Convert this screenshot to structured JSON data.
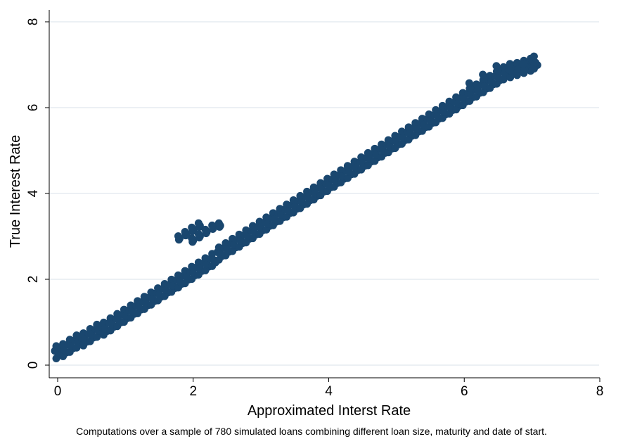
{
  "chart_data": {
    "type": "scatter",
    "xlabel": "Approximated Interst Rate",
    "ylabel": "True Interest Rate",
    "note": "Computations over a sample of 780 simulated loans combining different loan size, maturity and date of start.",
    "xlim": [
      0,
      8
    ],
    "ylim": [
      0,
      8
    ],
    "x_ticks": [
      0,
      2,
      4,
      6,
      8
    ],
    "y_ticks": [
      0,
      2,
      4,
      6,
      8
    ],
    "x_tick_labels": [
      "0",
      "2",
      "4",
      "6",
      "8"
    ],
    "y_tick_labels": [
      "0",
      "2",
      "4",
      "6",
      "8"
    ],
    "grid": "horizontal",
    "marker_color": "#1a476f",
    "grid_color": "#e5ecf0",
    "series": [
      {
        "main_band": [
          [
            0.0,
            0.3
          ],
          [
            0.1,
            0.35
          ],
          [
            0.2,
            0.45
          ],
          [
            0.3,
            0.55
          ],
          [
            0.4,
            0.6
          ],
          [
            0.5,
            0.7
          ],
          [
            0.6,
            0.8
          ],
          [
            0.7,
            0.85
          ],
          [
            0.8,
            0.95
          ],
          [
            0.9,
            1.05
          ],
          [
            1.0,
            1.15
          ],
          [
            1.1,
            1.25
          ],
          [
            1.2,
            1.35
          ],
          [
            1.3,
            1.45
          ],
          [
            1.4,
            1.55
          ],
          [
            1.5,
            1.65
          ],
          [
            1.6,
            1.75
          ],
          [
            1.7,
            1.85
          ],
          [
            1.8,
            1.95
          ],
          [
            1.9,
            2.05
          ],
          [
            2.0,
            2.15
          ],
          [
            2.1,
            2.25
          ],
          [
            2.2,
            2.35
          ],
          [
            2.3,
            2.45
          ],
          [
            2.4,
            2.6
          ],
          [
            2.5,
            2.7
          ],
          [
            2.6,
            2.8
          ],
          [
            2.7,
            2.9
          ],
          [
            2.8,
            3.0
          ],
          [
            2.9,
            3.1
          ],
          [
            3.0,
            3.2
          ],
          [
            3.1,
            3.3
          ],
          [
            3.2,
            3.4
          ],
          [
            3.3,
            3.5
          ],
          [
            3.4,
            3.6
          ],
          [
            3.5,
            3.7
          ],
          [
            3.6,
            3.8
          ],
          [
            3.7,
            3.9
          ],
          [
            3.8,
            4.0
          ],
          [
            3.9,
            4.1
          ],
          [
            4.0,
            4.2
          ],
          [
            4.1,
            4.3
          ],
          [
            4.2,
            4.4
          ],
          [
            4.3,
            4.5
          ],
          [
            4.4,
            4.6
          ],
          [
            4.5,
            4.7
          ],
          [
            4.6,
            4.8
          ],
          [
            4.7,
            4.9
          ],
          [
            4.8,
            5.0
          ],
          [
            4.9,
            5.1
          ],
          [
            5.0,
            5.2
          ],
          [
            5.1,
            5.3
          ],
          [
            5.2,
            5.4
          ],
          [
            5.3,
            5.5
          ],
          [
            5.4,
            5.6
          ],
          [
            5.5,
            5.7
          ],
          [
            5.6,
            5.8
          ],
          [
            5.7,
            5.9
          ],
          [
            5.8,
            6.0
          ],
          [
            5.9,
            6.1
          ],
          [
            6.0,
            6.2
          ],
          [
            6.1,
            6.3
          ],
          [
            6.2,
            6.4
          ],
          [
            6.3,
            6.5
          ],
          [
            6.4,
            6.6
          ],
          [
            6.5,
            6.7
          ],
          [
            6.6,
            6.8
          ],
          [
            6.7,
            6.85
          ],
          [
            6.8,
            6.9
          ],
          [
            6.9,
            6.95
          ],
          [
            7.0,
            7.0
          ],
          [
            7.05,
            7.05
          ]
        ],
        "upper_cluster_1": [
          [
            1.8,
            2.95
          ],
          [
            1.9,
            3.05
          ],
          [
            2.0,
            3.15
          ],
          [
            2.1,
            3.25
          ]
        ],
        "upper_cluster_2": [
          [
            2.0,
            2.9
          ],
          [
            2.1,
            3.0
          ],
          [
            2.2,
            3.1
          ],
          [
            2.3,
            3.2
          ],
          [
            2.4,
            3.25
          ]
        ],
        "upper_cluster_3": [
          [
            6.1,
            6.5
          ],
          [
            6.3,
            6.7
          ],
          [
            6.5,
            6.9
          ],
          [
            6.7,
            6.95
          ],
          [
            6.9,
            6.95
          ]
        ]
      }
    ]
  }
}
